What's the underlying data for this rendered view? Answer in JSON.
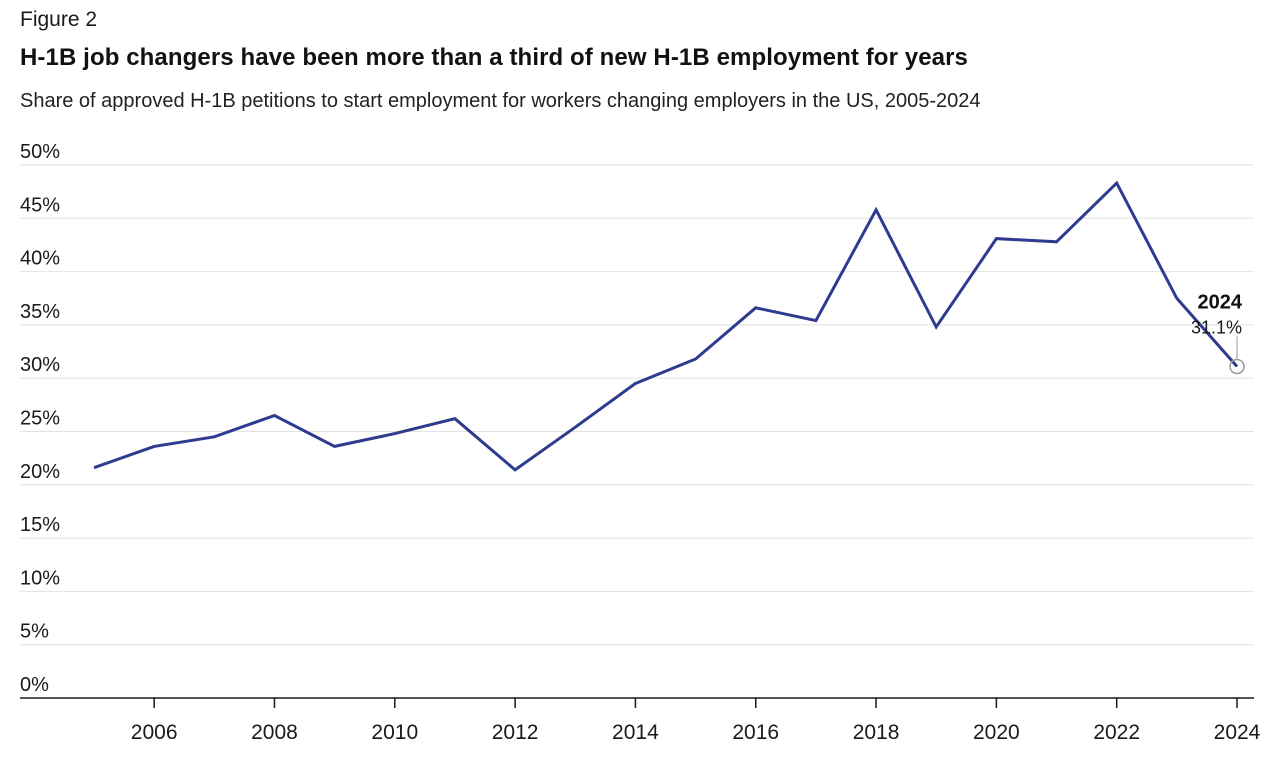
{
  "figure_label": "Figure 2",
  "chart_data": {
    "type": "line",
    "title": "H-1B job changers have been more than a third of new H-1B employment for years",
    "subtitle": "Share of approved H-1B petitions to start employment for workers changing employers in the US, 2005-2024",
    "xlabel": "",
    "ylabel": "",
    "x": [
      2005,
      2006,
      2007,
      2008,
      2009,
      2010,
      2011,
      2012,
      2013,
      2014,
      2015,
      2016,
      2017,
      2018,
      2019,
      2020,
      2021,
      2022,
      2023,
      2024
    ],
    "series": [
      {
        "values": [
          21.6,
          23.6,
          24.5,
          26.5,
          23.6,
          24.8,
          26.2,
          21.4,
          25.4,
          29.5,
          31.8,
          36.6,
          35.4,
          45.8,
          34.8,
          43.1,
          42.8,
          48.3,
          37.5,
          31.1
        ],
        "color": "#2e3b8f"
      }
    ],
    "ylim": [
      0,
      50
    ],
    "y_ticks": [
      0,
      5,
      10,
      15,
      20,
      25,
      30,
      35,
      40,
      45,
      50
    ],
    "y_tick_labels": [
      "0%",
      "5%",
      "10%",
      "15%",
      "20%",
      "25%",
      "30%",
      "35%",
      "40%",
      "45%",
      "50%"
    ],
    "x_ticks": [
      2006,
      2008,
      2010,
      2012,
      2014,
      2016,
      2018,
      2020,
      2022,
      2024
    ],
    "x_tick_labels": [
      "2006",
      "2008",
      "2010",
      "2012",
      "2014",
      "2016",
      "2018",
      "2020",
      "2022",
      "2024"
    ],
    "grid": true,
    "annotation": {
      "x": 2024,
      "y": 31.1,
      "label_year": "2024",
      "label_value": "31.1%"
    }
  }
}
